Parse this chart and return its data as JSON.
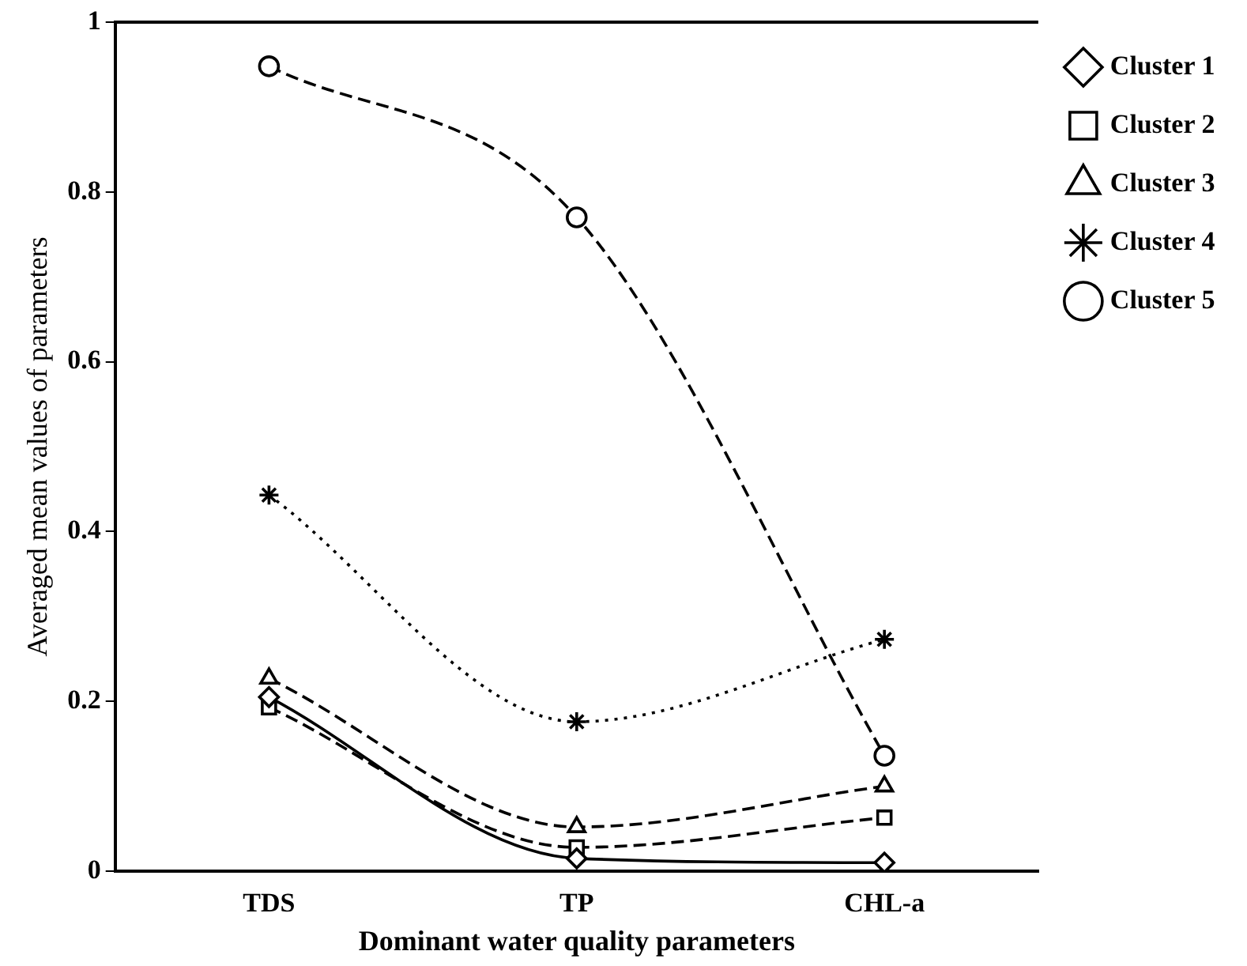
{
  "chart_data": {
    "type": "line",
    "xlabel": "Dominant water quality parameters",
    "ylabel": "Averaged mean values of parameters",
    "categories": [
      "TDS",
      "TP",
      "CHL-a"
    ],
    "ylim": [
      0,
      1
    ],
    "yticks": [
      0,
      0.2,
      0.4,
      0.6,
      0.8,
      1
    ],
    "grid": false,
    "legend": "top right",
    "series": [
      {
        "name": "Cluster 1",
        "color": "#000000",
        "marker": "diamond",
        "line_style": "solid",
        "values": [
          0.205,
          0.015,
          0.01
        ]
      },
      {
        "name": "Cluster 2",
        "color": "#000000",
        "marker": "square",
        "line_style": "dashed",
        "values": [
          0.193,
          0.028,
          0.063
        ]
      },
      {
        "name": "Cluster 3",
        "color": "#000000",
        "marker": "triangle",
        "line_style": "dashed",
        "values": [
          0.227,
          0.052,
          0.1
        ]
      },
      {
        "name": "Cluster 4",
        "color": "#000000",
        "marker": "cross",
        "line_style": "dotted",
        "values": [
          0.443,
          0.176,
          0.273
        ]
      },
      {
        "name": "Cluster 5",
        "color": "#000000",
        "marker": "circle",
        "line_style": "dashed",
        "values": [
          0.948,
          0.77,
          0.136
        ]
      }
    ]
  }
}
